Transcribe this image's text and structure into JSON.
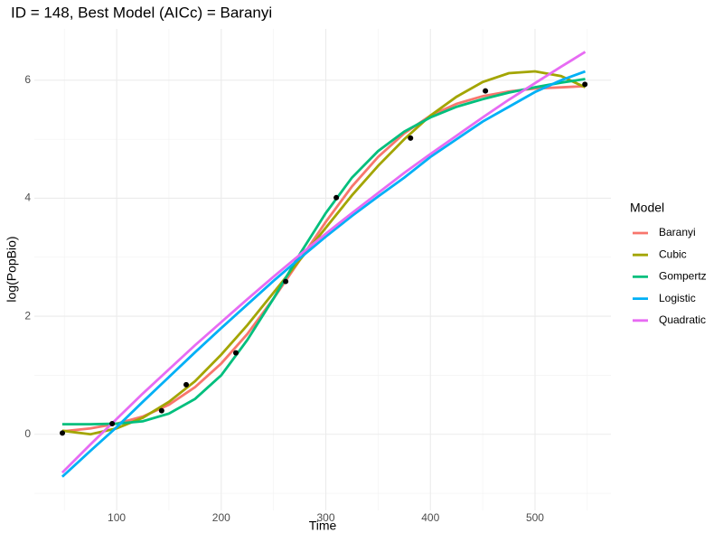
{
  "chart_data": {
    "type": "line",
    "title": "ID = 148, Best Model (AICc) = Baranyi",
    "x_label": "Time",
    "y_label": "log(PopBio)",
    "legend_title": "Model",
    "legend_position": "right",
    "grid": true,
    "xlim": [
      21.3,
      572.6
    ],
    "ylim": [
      -1.29,
      6.87
    ],
    "xticks": [
      100,
      200,
      300,
      400,
      500
    ],
    "yticks": [
      0,
      2,
      4,
      6
    ],
    "xminorticks": [
      50,
      150,
      250,
      350,
      450,
      550
    ],
    "yminorticks": [
      -1,
      1,
      3,
      5
    ],
    "x": [
      48,
      75,
      100,
      125,
      150,
      175,
      200,
      225,
      250,
      275,
      300,
      325,
      350,
      375,
      400,
      425,
      450,
      475,
      500,
      525,
      548
    ],
    "series": [
      {
        "name": "Baranyi",
        "color": "#F8766D",
        "values": [
          0.05,
          0.1,
          0.18,
          0.3,
          0.5,
          0.8,
          1.2,
          1.7,
          2.3,
          2.95,
          3.6,
          4.2,
          4.7,
          5.1,
          5.4,
          5.6,
          5.73,
          5.81,
          5.86,
          5.88,
          5.9
        ]
      },
      {
        "name": "Cubic",
        "color": "#A3A500",
        "values": [
          0.06,
          0.0,
          0.1,
          0.28,
          0.55,
          0.9,
          1.35,
          1.85,
          2.4,
          2.95,
          3.5,
          4.05,
          4.55,
          5.0,
          5.4,
          5.72,
          5.97,
          6.12,
          6.15,
          6.07,
          5.88
        ]
      },
      {
        "name": "Gompertz",
        "color": "#00BF7D",
        "values": [
          0.17,
          0.17,
          0.18,
          0.22,
          0.35,
          0.6,
          1.0,
          1.6,
          2.3,
          3.05,
          3.75,
          4.35,
          4.8,
          5.13,
          5.37,
          5.55,
          5.68,
          5.79,
          5.88,
          5.96,
          6.02
        ]
      },
      {
        "name": "Logistic",
        "color": "#00B0F6",
        "values": [
          -0.72,
          -0.28,
          0.12,
          0.55,
          0.97,
          1.39,
          1.8,
          2.2,
          2.6,
          2.98,
          3.35,
          3.7,
          4.03,
          4.35,
          4.7,
          5.0,
          5.3,
          5.55,
          5.8,
          6.0,
          6.15
        ]
      },
      {
        "name": "Quadratic",
        "color": "#E76BF3",
        "values": [
          -0.65,
          -0.17,
          0.26,
          0.69,
          1.1,
          1.51,
          1.9,
          2.29,
          2.67,
          3.04,
          3.4,
          3.75,
          4.09,
          4.43,
          4.75,
          5.06,
          5.37,
          5.67,
          5.95,
          6.23,
          6.48
        ]
      }
    ],
    "points": {
      "color": "#000000",
      "x": [
        48.1,
        95.7,
        143,
        166.5,
        214,
        261.6,
        310,
        381,
        452.6,
        547.7
      ],
      "values": [
        0.02,
        0.18,
        0.4,
        0.84,
        1.38,
        2.59,
        4.01,
        5.02,
        5.82,
        5.93
      ]
    }
  }
}
